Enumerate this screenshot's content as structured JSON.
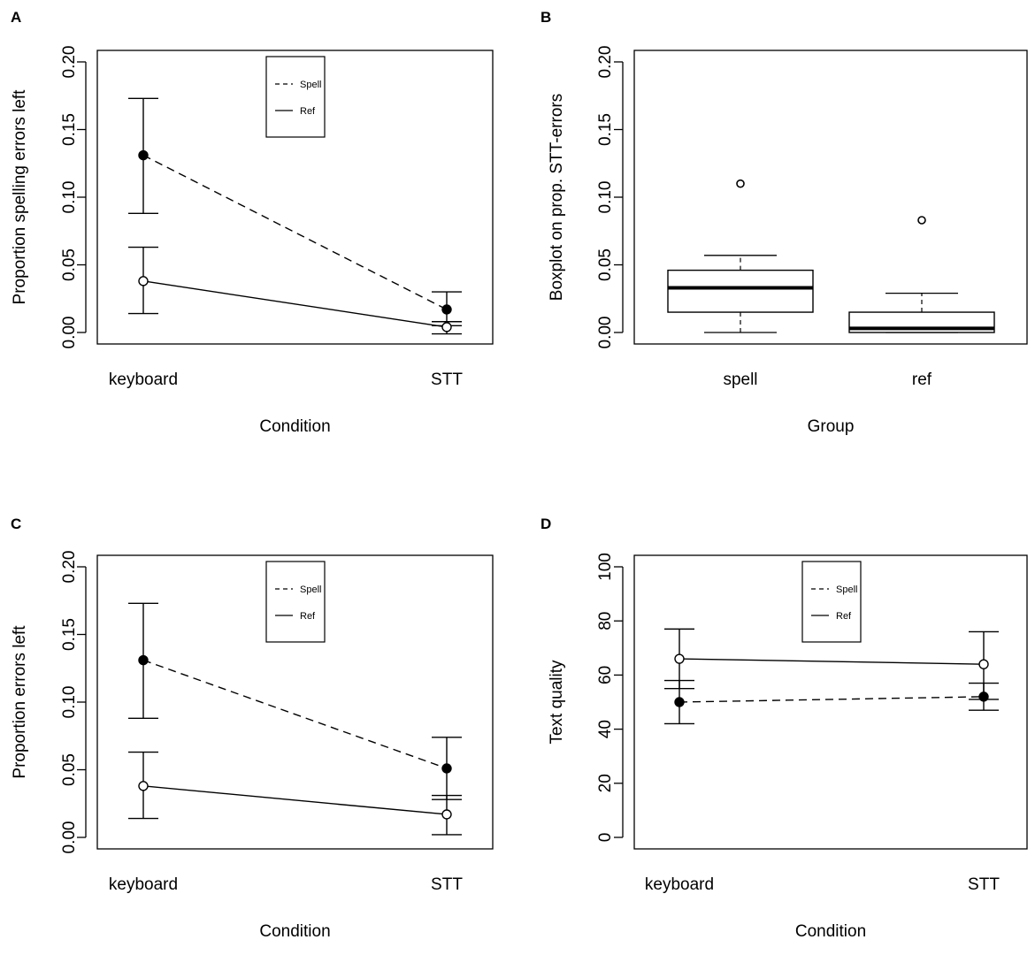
{
  "chart_data": [
    {
      "panel_label": "A",
      "type": "line",
      "xlabel": "Condition",
      "ylabel": "Proportion spelling errors left",
      "categories": [
        "keyboard",
        "STT"
      ],
      "ylim": [
        0,
        0.2
      ],
      "yticks": [
        "0.00",
        "0.05",
        "0.10",
        "0.15",
        "0.20"
      ],
      "legend": {
        "placement": "top-center",
        "entries": [
          "Spell",
          "Ref"
        ]
      },
      "series": [
        {
          "name": "Spell",
          "line": "dashed",
          "marker": "filled",
          "values": [
            0.131,
            0.017
          ],
          "lower": [
            0.088,
            0.005
          ],
          "upper": [
            0.173,
            0.03
          ]
        },
        {
          "name": "Ref",
          "line": "solid",
          "marker": "open",
          "values": [
            0.038,
            0.004
          ],
          "lower": [
            0.014,
            -0.001
          ],
          "upper": [
            0.063,
            0.008
          ]
        }
      ]
    },
    {
      "panel_label": "B",
      "type": "boxplot",
      "xlabel": "Group",
      "ylabel": "Boxplot on prop. STT-errors",
      "categories": [
        "spell",
        "ref"
      ],
      "ylim": [
        0,
        0.2
      ],
      "yticks": [
        "0.00",
        "0.05",
        "0.10",
        "0.15",
        "0.20"
      ],
      "boxes": [
        {
          "name": "spell",
          "whisker_low": 0.0,
          "q1": 0.015,
          "median": 0.033,
          "q3": 0.046,
          "whisker_high": 0.057,
          "outliers": [
            0.11
          ]
        },
        {
          "name": "ref",
          "whisker_low": 0.0,
          "q1": 0.0,
          "median": 0.003,
          "q3": 0.015,
          "whisker_high": 0.029,
          "outliers": [
            0.083
          ]
        }
      ]
    },
    {
      "panel_label": "C",
      "type": "line",
      "xlabel": "Condition",
      "ylabel": "Proportion errors left",
      "categories": [
        "keyboard",
        "STT"
      ],
      "ylim": [
        0,
        0.2
      ],
      "yticks": [
        "0.00",
        "0.05",
        "0.10",
        "0.15",
        "0.20"
      ],
      "legend": {
        "placement": "top-center",
        "entries": [
          "Spell",
          "Ref"
        ]
      },
      "series": [
        {
          "name": "Spell",
          "line": "dashed",
          "marker": "filled",
          "values": [
            0.131,
            0.051
          ],
          "lower": [
            0.088,
            0.028
          ],
          "upper": [
            0.173,
            0.074
          ]
        },
        {
          "name": "Ref",
          "line": "solid",
          "marker": "open",
          "values": [
            0.038,
            0.017
          ],
          "lower": [
            0.014,
            0.002
          ],
          "upper": [
            0.063,
            0.031
          ]
        }
      ]
    },
    {
      "panel_label": "D",
      "type": "line",
      "xlabel": "Condition",
      "ylabel": "Text quality",
      "categories": [
        "keyboard",
        "STT"
      ],
      "ylim": [
        0,
        100
      ],
      "yticks": [
        "0",
        "20",
        "40",
        "60",
        "80",
        "100"
      ],
      "legend": {
        "placement": "top-center",
        "entries": [
          "Spell",
          "Ref"
        ]
      },
      "series": [
        {
          "name": "Spell",
          "line": "dashed",
          "marker": "filled",
          "values": [
            50,
            52
          ],
          "lower": [
            42,
            47
          ],
          "upper": [
            58,
            57
          ]
        },
        {
          "name": "Ref",
          "line": "solid",
          "marker": "open",
          "values": [
            66,
            64
          ],
          "lower": [
            55,
            51
          ],
          "upper": [
            77,
            76
          ]
        }
      ]
    }
  ]
}
